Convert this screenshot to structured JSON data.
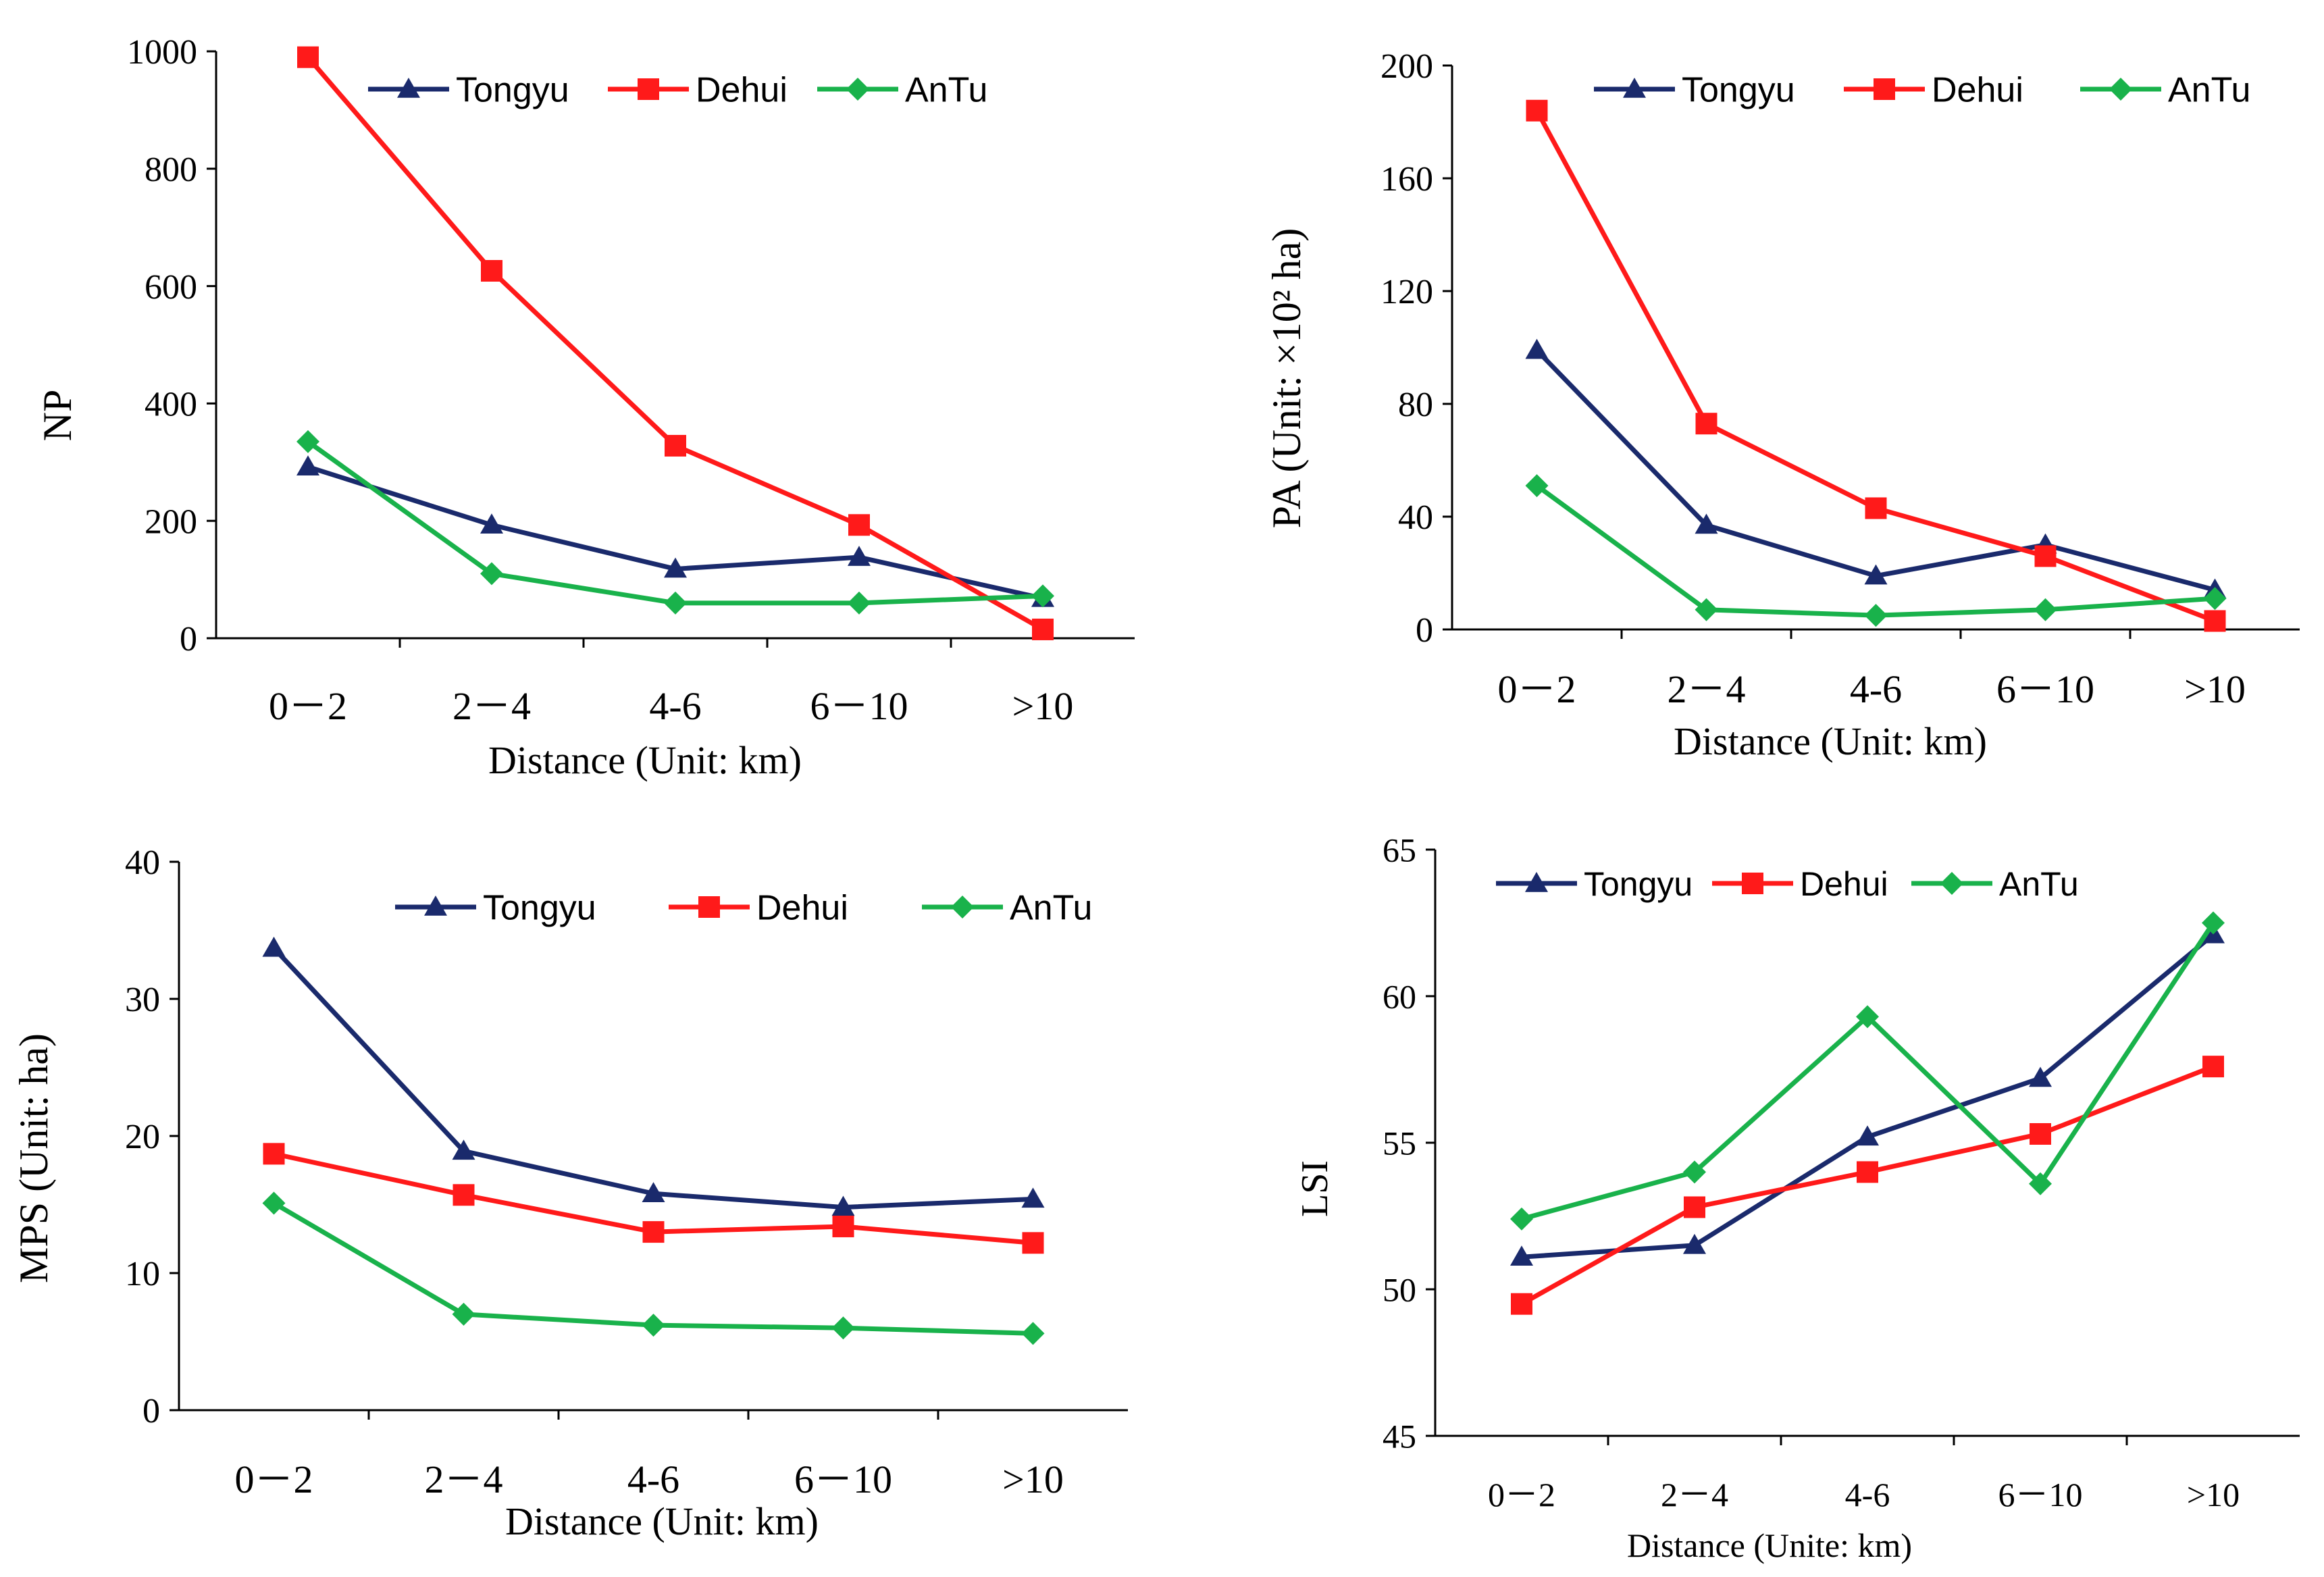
{
  "colors": {
    "Tongyu": "#1a2a6c",
    "Dehui": "#ff1a1a",
    "AnTu": "#19b24b",
    "axis": "#000000"
  },
  "chart_data": [
    {
      "id": "np",
      "type": "line",
      "categories": [
        "0－2",
        "2－4",
        "4-6",
        "6－10",
        ">10"
      ],
      "series": [
        {
          "name": "Tongyu",
          "marker": "triangle",
          "values": [
            292,
            193,
            118,
            138,
            68
          ]
        },
        {
          "name": "Dehui",
          "marker": "square",
          "values": [
            990,
            626,
            328,
            193,
            15
          ]
        },
        {
          "name": "AnTu",
          "marker": "diamond",
          "values": [
            335,
            110,
            60,
            60,
            72
          ]
        }
      ],
      "xlabel": "Distance (Unit:  km)",
      "ylabel": "NP",
      "ylim": [
        0,
        1000
      ],
      "yticks": [
        "0",
        "200",
        "400",
        "600",
        "800",
        "1000"
      ],
      "legend": [
        "Tongyu",
        "Dehui",
        "AnTu"
      ]
    },
    {
      "id": "pa",
      "type": "line",
      "categories": [
        "0－2",
        "2－4",
        "4-6",
        "6－10",
        ">10"
      ],
      "series": [
        {
          "name": "Tongyu",
          "marker": "triangle",
          "values": [
            99,
            37,
            19,
            30,
            14
          ]
        },
        {
          "name": "Dehui",
          "marker": "square",
          "values": [
            184,
            73,
            43,
            26,
            3
          ]
        },
        {
          "name": "AnTu",
          "marker": "diamond",
          "values": [
            51,
            7,
            5,
            7,
            11
          ]
        }
      ],
      "xlabel": "Distance (Unit:  km)",
      "ylabel": "PA (Unit: ×10² ha)",
      "ylim": [
        0,
        200
      ],
      "yticks": [
        "0",
        "40",
        "80",
        "120",
        "160",
        "200"
      ],
      "legend": [
        "Tongyu",
        "Dehui",
        "AnTu"
      ]
    },
    {
      "id": "mps",
      "type": "line",
      "categories": [
        "0－2",
        "2－4",
        "4-6",
        "6－10",
        ">10"
      ],
      "series": [
        {
          "name": "Tongyu",
          "marker": "triangle",
          "values": [
            33.7,
            18.9,
            15.8,
            14.8,
            15.4
          ]
        },
        {
          "name": "Dehui",
          "marker": "square",
          "values": [
            18.7,
            15.7,
            13.0,
            13.4,
            12.2
          ]
        },
        {
          "name": "AnTu",
          "marker": "diamond",
          "values": [
            15.1,
            7.0,
            6.2,
            6.0,
            5.6
          ]
        }
      ],
      "xlabel": "Distance (Unit:  km)",
      "ylabel": "MPS (Unit: ha)",
      "ylim": [
        0,
        40
      ],
      "yticks": [
        "0",
        "10",
        "20",
        "30",
        "40"
      ],
      "legend": [
        "Tongyu",
        "Dehui",
        "AnTu"
      ]
    },
    {
      "id": "lsi",
      "type": "line",
      "categories": [
        "0－2",
        "2－4",
        "4-6",
        "6－10",
        ">10"
      ],
      "series": [
        {
          "name": "Tongyu",
          "marker": "triangle",
          "values": [
            51.1,
            51.5,
            55.2,
            57.2,
            62.1
          ]
        },
        {
          "name": "Dehui",
          "marker": "square",
          "values": [
            49.5,
            52.8,
            54.0,
            55.3,
            57.6
          ]
        },
        {
          "name": "AnTu",
          "marker": "diamond",
          "values": [
            52.4,
            54.0,
            59.3,
            53.6,
            62.5
          ]
        }
      ],
      "xlabel": "Distance (Unite:  km)",
      "ylabel": "LSI",
      "ylim": [
        45,
        65
      ],
      "yticks": [
        "45",
        "50",
        "55",
        "60",
        "65"
      ],
      "legend": [
        "Tongyu",
        "Dehui",
        "AnTu"
      ]
    }
  ]
}
